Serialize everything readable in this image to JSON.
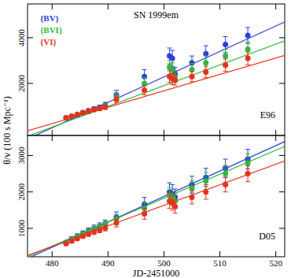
{
  "chart_data": [
    {
      "type": "scatter",
      "title": "SN 1999em",
      "annotation": "E96",
      "ylabel": "θ/v (100 s Mpc⁻¹)",
      "x": [
        482.5,
        483.5,
        484.5,
        485.5,
        486.5,
        487.5,
        488.5,
        489.5,
        491.5,
        496.5,
        501,
        501.5,
        502,
        505,
        507.5,
        511,
        515
      ],
      "series": [
        {
          "name": "{BV}",
          "color": "#2f3fd8",
          "marker": "circle",
          "values": [
            480,
            560,
            620,
            720,
            800,
            880,
            950,
            1050,
            1500,
            2300,
            3200,
            3100,
            2400,
            2900,
            3300,
            3700,
            4100
          ],
          "errors": [
            80,
            80,
            80,
            80,
            90,
            100,
            100,
            120,
            200,
            300,
            350,
            350,
            300,
            300,
            350,
            350,
            350
          ],
          "fit_x": [
            474,
            522
          ],
          "fit_values": [
            -614,
            4733
          ]
        },
        {
          "name": "{BVI}",
          "color": "#2fb83a",
          "marker": "circle",
          "values": [
            500,
            560,
            640,
            700,
            760,
            850,
            920,
            1000,
            1400,
            2000,
            2700,
            2600,
            2300,
            2600,
            2900,
            3200,
            3500
          ],
          "errors": [
            70,
            70,
            70,
            70,
            80,
            90,
            90,
            110,
            180,
            260,
            300,
            300,
            270,
            270,
            300,
            300,
            320
          ],
          "fit_x": [
            474,
            522
          ],
          "fit_values": [
            -462,
            3897
          ]
        },
        {
          "name": "{VI}",
          "color": "#e8301e",
          "marker": "circle",
          "values": [
            500,
            560,
            640,
            720,
            780,
            860,
            900,
            960,
            1300,
            1700,
            2300,
            2200,
            2150,
            2300,
            2500,
            2800,
            3100
          ],
          "errors": [
            60,
            60,
            60,
            60,
            70,
            80,
            80,
            100,
            150,
            200,
            250,
            250,
            230,
            230,
            250,
            270,
            280
          ],
          "fit_x": [
            474,
            522
          ],
          "fit_values": [
            -195,
            3252
          ]
        }
      ],
      "xlim": [
        475.6,
        521.6
      ],
      "ylim": [
        -280,
        5480
      ],
      "xticks": [
        480,
        490,
        500,
        510,
        520
      ],
      "yticks": [
        2000,
        4000
      ],
      "tick_labels": "y",
      "grid": false,
      "legend": "upper left"
    },
    {
      "type": "scatter",
      "annotation": "D05",
      "xlabel": "JD-2451000",
      "x": [
        482.5,
        483.5,
        484.5,
        485.5,
        486.5,
        487.5,
        488.5,
        489.5,
        491.5,
        496.5,
        501,
        501.5,
        502,
        505,
        507.5,
        511,
        515
      ],
      "series": [
        {
          "color": "#2f3fd8",
          "marker": "circle",
          "values": [
            600,
            700,
            780,
            860,
            930,
            1000,
            1060,
            1130,
            1300,
            1650,
            2000,
            1950,
            1850,
            2200,
            2400,
            2650,
            2900
          ],
          "errors": [
            70,
            70,
            70,
            70,
            80,
            90,
            90,
            100,
            150,
            200,
            250,
            250,
            230,
            230,
            250,
            250,
            270
          ],
          "fit_x": [
            474,
            522
          ],
          "fit_values": [
            60,
            3410
          ]
        },
        {
          "color": "#2fb83a",
          "marker": "circle",
          "values": [
            600,
            690,
            770,
            840,
            900,
            970,
            1030,
            1100,
            1250,
            1550,
            1900,
            1850,
            1750,
            2100,
            2300,
            2500,
            2800
          ],
          "errors": [
            60,
            60,
            60,
            60,
            70,
            80,
            80,
            90,
            130,
            180,
            220,
            220,
            200,
            200,
            230,
            230,
            250
          ],
          "fit_x": [
            474,
            522
          ],
          "fit_values": [
            115,
            3278
          ]
        },
        {
          "color": "#e8301e",
          "marker": "circle",
          "values": [
            580,
            650,
            720,
            780,
            840,
            900,
            950,
            1010,
            1150,
            1400,
            1750,
            1700,
            1600,
            1850,
            2000,
            2200,
            2500
          ],
          "errors": [
            50,
            50,
            50,
            50,
            60,
            70,
            70,
            80,
            110,
            150,
            200,
            200,
            180,
            180,
            200,
            200,
            220
          ],
          "fit_x": [
            474,
            522
          ],
          "fit_values": [
            164,
            2871
          ]
        }
      ],
      "xlim": [
        475.6,
        521.6
      ],
      "ylim": [
        220,
        3550
      ],
      "xticks": [
        480,
        490,
        500,
        510,
        520
      ],
      "yticks": [
        1000,
        2000,
        3000
      ],
      "tick_labels": true,
      "grid": false
    }
  ]
}
